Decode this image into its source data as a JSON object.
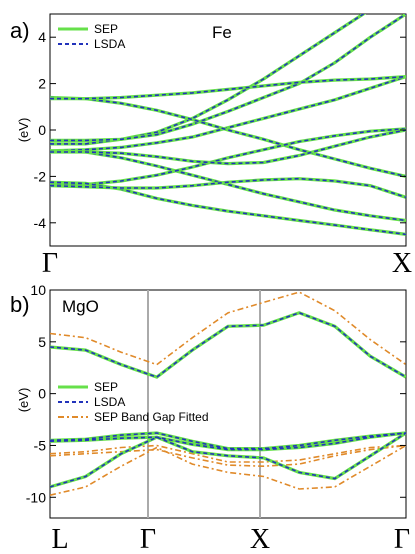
{
  "panels": [
    {
      "id": "a",
      "panel_label": "a)",
      "material": "Fe",
      "ylabel": "(eV)",
      "yticks": [
        "4",
        "2",
        "0",
        "-2",
        "-4"
      ],
      "xticks": [
        "Γ",
        "X"
      ],
      "legend": [
        {
          "label": "SEP",
          "color": "#66e04a",
          "style": "solid"
        },
        {
          "label": "LSDA",
          "color": "#2233bb",
          "style": "dashed"
        }
      ]
    },
    {
      "id": "b",
      "panel_label": "b)",
      "material": "MgO",
      "ylabel": "(eV)",
      "yticks": [
        "10",
        "5",
        "0",
        "-5",
        "-10"
      ],
      "xticks": [
        "L",
        "Γ",
        "X",
        "Γ"
      ],
      "legend": [
        {
          "label": "SEP",
          "color": "#66e04a",
          "style": "solid"
        },
        {
          "label": "LSDA",
          "color": "#2233bb",
          "style": "dashed"
        },
        {
          "label": "SEP Band Gap Fitted",
          "color": "#e08a2a",
          "style": "dashdot"
        }
      ]
    }
  ],
  "chart_data": [
    {
      "type": "line",
      "material": "Fe",
      "ylabel": "(eV)",
      "xticks": [
        "Γ",
        "X"
      ],
      "x": [
        0,
        0.1,
        0.2,
        0.3,
        0.4,
        0.5,
        0.6,
        0.7,
        0.8,
        0.9,
        1.0
      ],
      "ylim": [
        -5,
        5
      ],
      "grid": false,
      "legend_position": "top-left",
      "bands": [
        [
          -0.6,
          -0.6,
          -0.4,
          -0.1,
          0.5,
          1.3,
          2.2,
          3.2,
          4.2,
          5.2,
          6.0
        ],
        [
          -0.45,
          -0.45,
          -0.4,
          -0.2,
          0.25,
          0.8,
          1.4,
          2.0,
          2.9,
          4.0,
          5.0
        ],
        [
          -0.9,
          -0.85,
          -0.75,
          -0.55,
          -0.3,
          0.1,
          0.5,
          0.9,
          1.3,
          1.8,
          2.3
        ],
        [
          1.4,
          1.35,
          1.15,
          0.85,
          0.45,
          0.0,
          -0.4,
          -0.85,
          -1.25,
          -1.65,
          -2.0
        ],
        [
          1.35,
          1.35,
          1.4,
          1.5,
          1.6,
          1.75,
          1.9,
          2.05,
          2.15,
          2.2,
          2.3
        ],
        [
          -0.9,
          -0.95,
          -1.2,
          -1.55,
          -1.95,
          -2.35,
          -2.75,
          -3.1,
          -3.45,
          -3.7,
          -3.9
        ],
        [
          -2.35,
          -2.35,
          -2.2,
          -1.95,
          -1.6,
          -1.2,
          -0.85,
          -0.5,
          -0.25,
          -0.05,
          0.05
        ],
        [
          -0.95,
          -0.95,
          -1.0,
          -1.15,
          -1.35,
          -1.45,
          -1.4,
          -1.1,
          -0.7,
          -0.3,
          0.0
        ],
        [
          -2.25,
          -2.3,
          -2.55,
          -2.95,
          -3.25,
          -3.5,
          -3.7,
          -3.9,
          -4.1,
          -4.3,
          -4.5
        ],
        [
          -2.4,
          -2.45,
          -2.5,
          -2.5,
          -2.4,
          -2.25,
          -2.15,
          -2.1,
          -2.2,
          -2.4,
          -2.9
        ]
      ],
      "series": [
        {
          "name": "SEP",
          "color": "#66e04a",
          "style": "solid"
        },
        {
          "name": "LSDA",
          "color": "#2233bb",
          "style": "dashed"
        }
      ]
    },
    {
      "type": "line",
      "material": "MgO",
      "ylabel": "(eV)",
      "xticks": [
        "L",
        "Γ",
        "X",
        "Γ"
      ],
      "x": [
        0,
        0.1,
        0.2,
        0.3,
        0.4,
        0.5,
        0.6,
        0.7,
        0.8,
        0.9,
        1.0
      ],
      "ylim": [
        -12,
        10
      ],
      "grid": false,
      "legend_position": "left",
      "series": [
        {
          "name": "SEP",
          "color": "#66e04a",
          "style": "solid",
          "bands": [
            [
              4.5,
              4.2,
              2.8,
              1.6,
              4.2,
              6.5,
              6.6,
              7.8,
              6.5,
              3.6,
              1.6
            ],
            [
              -4.5,
              -4.4,
              -4.0,
              -3.8,
              -4.6,
              -5.3,
              -5.3,
              -5.0,
              -4.5,
              -4.1,
              -3.8
            ],
            [
              -4.6,
              -4.5,
              -4.3,
              -4.2,
              -4.9,
              -5.4,
              -5.4,
              -5.2,
              -4.8,
              -4.2,
              -3.8
            ],
            [
              -9.0,
              -8.0,
              -5.8,
              -4.2,
              -5.6,
              -6.0,
              -6.2,
              -7.6,
              -8.2,
              -6.0,
              -3.8
            ]
          ]
        },
        {
          "name": "LSDA",
          "color": "#2233bb",
          "style": "dashed",
          "bands": [
            [
              4.5,
              4.2,
              2.8,
              1.6,
              4.2,
              6.5,
              6.6,
              7.8,
              6.5,
              3.6,
              1.6
            ],
            [
              -4.5,
              -4.4,
              -4.0,
              -3.8,
              -4.6,
              -5.3,
              -5.3,
              -5.0,
              -4.5,
              -4.1,
              -3.8
            ],
            [
              -4.6,
              -4.5,
              -4.3,
              -4.2,
              -4.9,
              -5.4,
              -5.4,
              -5.2,
              -4.8,
              -4.2,
              -3.8
            ],
            [
              -9.0,
              -8.0,
              -5.8,
              -4.2,
              -5.6,
              -6.0,
              -6.2,
              -7.6,
              -8.2,
              -6.0,
              -3.8
            ]
          ]
        },
        {
          "name": "SEP Band Gap Fitted",
          "color": "#e08a2a",
          "style": "dashdot",
          "bands": [
            [
              5.8,
              5.4,
              4.0,
              2.8,
              5.4,
              7.8,
              8.8,
              9.8,
              8.0,
              5.2,
              2.8
            ],
            [
              -5.8,
              -5.6,
              -5.2,
              -5.0,
              -5.8,
              -6.6,
              -6.6,
              -6.4,
              -5.8,
              -5.2,
              -5.0
            ],
            [
              -6.0,
              -5.8,
              -5.6,
              -5.4,
              -6.2,
              -6.9,
              -7.0,
              -6.8,
              -6.0,
              -5.4,
              -5.0
            ],
            [
              -9.8,
              -9.0,
              -7.0,
              -5.2,
              -6.8,
              -7.6,
              -8.0,
              -9.2,
              -9.0,
              -7.0,
              -5.0
            ]
          ]
        }
      ]
    }
  ]
}
